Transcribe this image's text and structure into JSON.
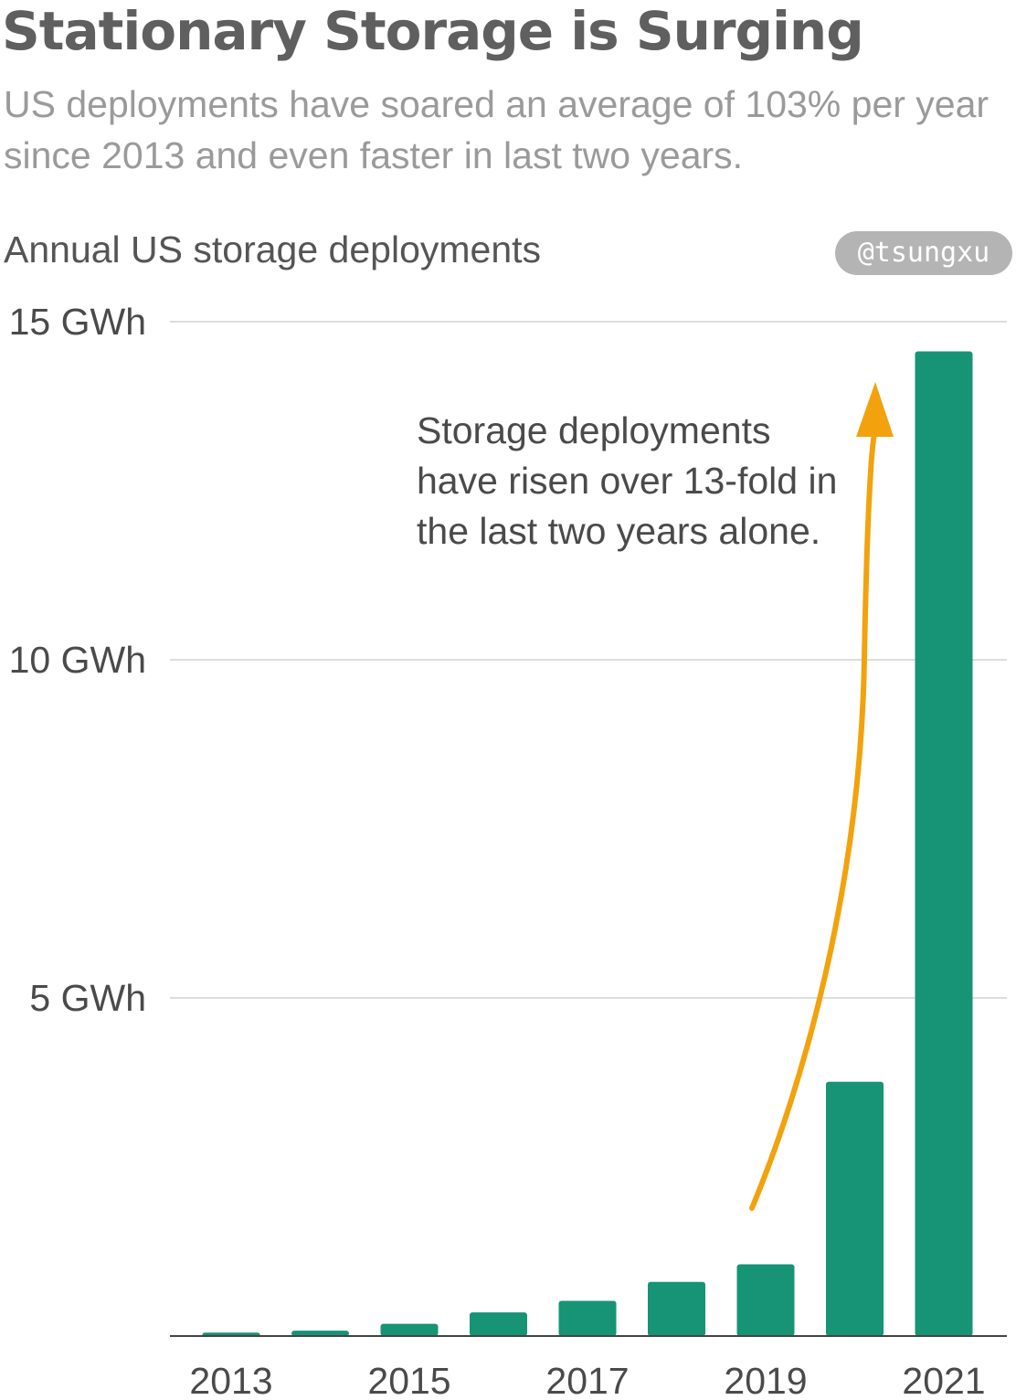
{
  "header": {
    "title": "Stationary Storage is Surging",
    "subtitle": "US deployments have soared an average of 103% per year since 2013 and even faster in last two years."
  },
  "chart_label": "Annual US storage deployments",
  "watermark": "@tsungxu",
  "annotation": "Storage deployments have risen over 13-fold in the last two years alone.",
  "colors": {
    "bar": "#169475",
    "arrow": "#f2a20c",
    "grid": "#dddddd",
    "axis": "#444444"
  },
  "chart_data": {
    "type": "bar",
    "title": "Stationary Storage is Surging",
    "subtitle": "US deployments have soared an average of 103% per year since 2013 and even faster in last two years.",
    "ylabel": "Annual US storage deployments",
    "categories": [
      2013,
      2014,
      2015,
      2016,
      2017,
      2018,
      2019,
      2020,
      2021
    ],
    "x_tick_labels": [
      "2013",
      "2015",
      "2017",
      "2019",
      "2021"
    ],
    "x_tick_values": [
      2013,
      2015,
      2017,
      2019,
      2021
    ],
    "values": [
      0.05,
      0.08,
      0.18,
      0.35,
      0.52,
      0.8,
      1.06,
      3.76,
      14.56
    ],
    "y_ticks": [
      {
        "value": 5,
        "label": "5 GWh"
      },
      {
        "value": 10,
        "label": "10 GWh"
      },
      {
        "value": 15,
        "label": "15 GWh"
      }
    ],
    "ylim": [
      0,
      15
    ],
    "grid": true,
    "legend": "none"
  }
}
